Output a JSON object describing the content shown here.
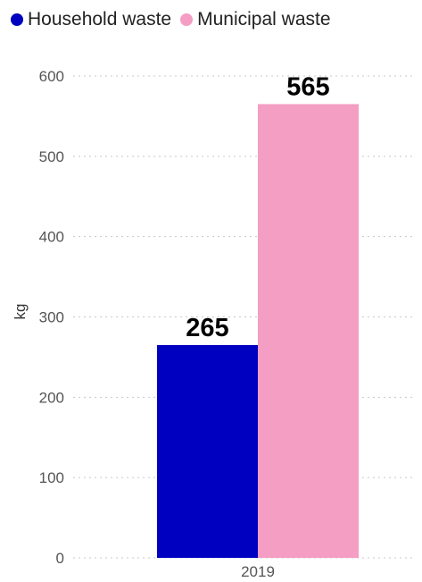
{
  "chart_data": {
    "type": "bar",
    "categories": [
      "2019"
    ],
    "series": [
      {
        "name": "Household waste",
        "values": [
          265
        ],
        "color": "#0000c0"
      },
      {
        "name": "Municipal waste",
        "values": [
          565
        ],
        "color": "#f49ec4"
      }
    ],
    "xlabel": "",
    "ylabel": "kg",
    "ylim": [
      0,
      600
    ],
    "yticks": [
      0,
      100,
      200,
      300,
      400,
      500,
      600
    ],
    "grid": true,
    "legend_position": "top-left",
    "data_labels": [
      "265",
      "565"
    ]
  }
}
